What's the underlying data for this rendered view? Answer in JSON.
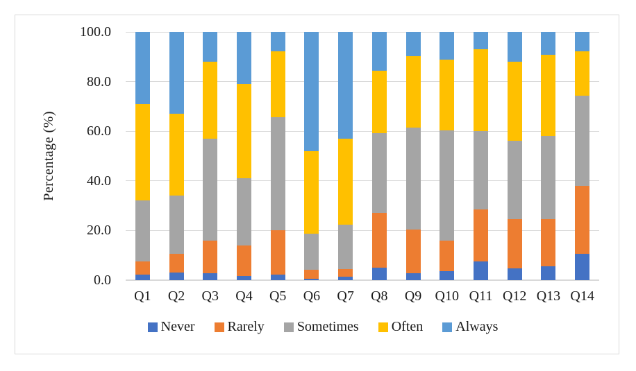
{
  "window": {
    "background": "#FFFFFF",
    "frame_border_color": "#D9D9D9"
  },
  "chart_data": {
    "type": "bar",
    "stacked": true,
    "orientation": "vertical",
    "title": "",
    "xlabel": "",
    "ylabel": "Percentage (%)",
    "ylim": [
      0,
      100
    ],
    "yticks": [
      0,
      20,
      40,
      60,
      80,
      100
    ],
    "ytick_labels": [
      "0.0",
      "20.0",
      "40.0",
      "60.0",
      "80.0",
      "100.0"
    ],
    "grid": true,
    "gridline_color": "#D9D9D9",
    "axis_line_color": "#D9D9D9",
    "text_color": "#1A1A1A",
    "legend_position": "bottom",
    "categories": [
      "Q1",
      "Q2",
      "Q3",
      "Q4",
      "Q5",
      "Q6",
      "Q7",
      "Q8",
      "Q9",
      "Q10",
      "Q11",
      "Q12",
      "Q13",
      "Q14"
    ],
    "series": [
      {
        "name": "Never",
        "color": "#4472C4",
        "values": [
          2.3,
          3.1,
          2.9,
          1.6,
          2.2,
          0.5,
          1.3,
          5.1,
          2.7,
          3.5,
          7.6,
          4.7,
          5.5,
          10.7
        ]
      },
      {
        "name": "Rarely",
        "color": "#ED7D31",
        "values": [
          5.2,
          7.5,
          13.1,
          12.4,
          17.8,
          3.7,
          3.1,
          22.1,
          17.8,
          12.5,
          20.8,
          20.0,
          19.2,
          27.4
        ]
      },
      {
        "name": "Sometimes",
        "color": "#A5A5A5",
        "values": [
          24.5,
          23.4,
          41.0,
          27.0,
          45.7,
          14.6,
          17.9,
          32.1,
          41.1,
          44.4,
          31.7,
          31.4,
          33.4,
          36.1
        ]
      },
      {
        "name": "Often",
        "color": "#FFC000",
        "values": [
          39.0,
          33.0,
          31.0,
          38.0,
          26.6,
          33.2,
          34.7,
          25.2,
          28.7,
          28.5,
          33.0,
          31.8,
          32.6,
          17.9
        ]
      },
      {
        "name": "Always",
        "color": "#5B9BD5",
        "values": [
          29.0,
          33.0,
          12.0,
          21.0,
          7.7,
          48.0,
          43.0,
          15.5,
          9.7,
          11.1,
          6.9,
          12.1,
          9.3,
          7.9
        ]
      }
    ]
  }
}
